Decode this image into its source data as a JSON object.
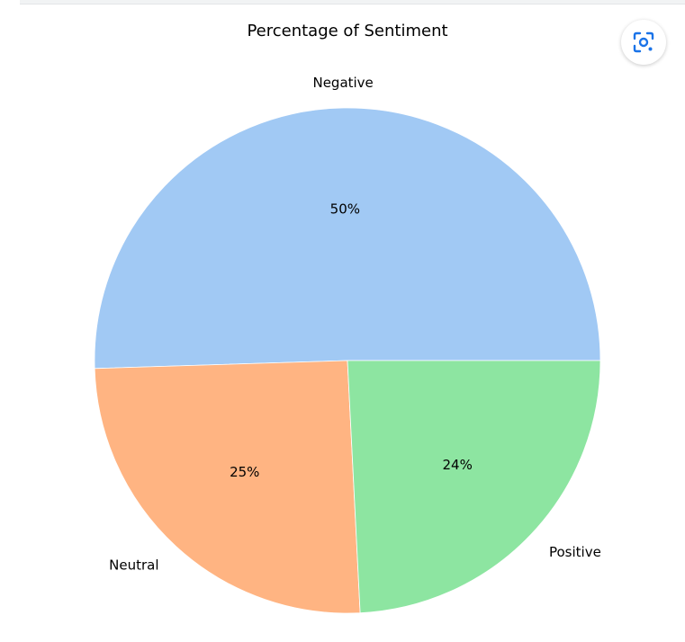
{
  "chart_data": {
    "type": "pie",
    "title": "Percentage of Sentiment",
    "slices": [
      {
        "label": "Negative",
        "value": 50.5,
        "pct_label": "50%",
        "color": "#a1c9f4"
      },
      {
        "label": "Neutral",
        "value": 25.3,
        "pct_label": "25%",
        "color": "#ffb482"
      },
      {
        "label": "Positive",
        "value": 24.2,
        "pct_label": "24%",
        "color": "#8de5a1"
      }
    ],
    "start_angle": 0,
    "direction": "counterclockwise"
  },
  "toolbar": {
    "lens_icon": "google-lens-icon",
    "accent_color": "#1a73e8"
  }
}
